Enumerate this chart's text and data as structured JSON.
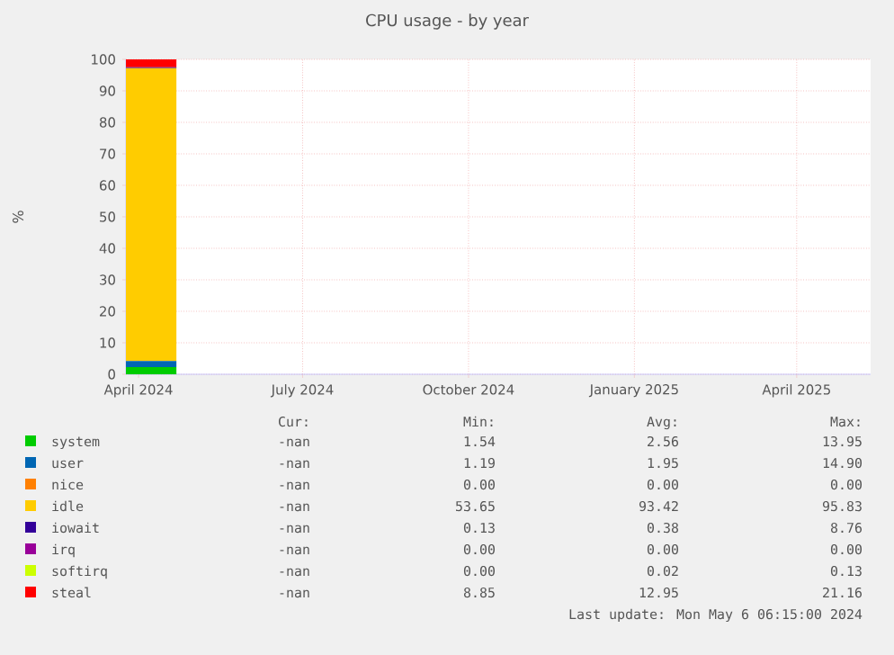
{
  "chart_data": {
    "type": "area",
    "stacked": true,
    "title": "CPU usage - by year",
    "ylabel": "%",
    "x": [
      "2024-03-25",
      "2024-04-01",
      "2024-04-08",
      "2024-04-15",
      "2024-04-22"
    ],
    "series": [
      {
        "name": "system",
        "color": "#00cc00",
        "values": [
          2.3,
          2.3,
          2.3,
          2.3,
          2.3
        ]
      },
      {
        "name": "user",
        "color": "#0066b3",
        "values": [
          1.9,
          1.9,
          1.9,
          1.9,
          1.9
        ]
      },
      {
        "name": "nice",
        "color": "#ff8000",
        "values": [
          null,
          null,
          null,
          null,
          null
        ]
      },
      {
        "name": "idle",
        "color": "#ffcc00",
        "values": [
          93,
          93,
          93,
          93,
          93
        ]
      },
      {
        "name": "iowait",
        "color": "#330099",
        "values": [
          0.3,
          0.3,
          0.3,
          0.3,
          0.3
        ]
      },
      {
        "name": "irq",
        "color": "#990099",
        "values": [
          null,
          null,
          null,
          null,
          null
        ]
      },
      {
        "name": "softirq",
        "color": "#ccff00",
        "values": [
          null,
          null,
          null,
          null,
          null
        ]
      },
      {
        "name": "steal",
        "color": "#ff0000",
        "values": [
          2.5,
          2.5,
          2.5,
          2.5,
          2.5
        ]
      }
    ],
    "xlim": [
      "2024-03-25",
      "2025-05-12"
    ],
    "ylim": [
      0,
      100
    ],
    "xticks": [
      {
        "value": "2024-04-01",
        "label": "April 2024"
      },
      {
        "value": "2024-07-01",
        "label": "July 2024"
      },
      {
        "value": "2024-10-01",
        "label": "October 2024"
      },
      {
        "value": "2025-01-01",
        "label": "January 2025"
      },
      {
        "value": "2025-04-01",
        "label": "April 2025"
      }
    ],
    "yticks": [
      0,
      10,
      20,
      30,
      40,
      50,
      60,
      70,
      80,
      90,
      100
    ],
    "grid": true,
    "legend": "bottom",
    "annotations": [
      "Cur:",
      "Min:",
      "Avg:",
      "Max:",
      "-nan",
      "1.54",
      "2.56",
      "13.95",
      "-nan",
      "1.19",
      "1.95",
      "14.90",
      "-nan",
      "0.00",
      "0.00",
      "0.00",
      "-nan",
      "53.65",
      "93.42",
      "95.83",
      "-nan",
      "0.13",
      "0.38",
      "8.76",
      "-nan",
      "0.00",
      "0.00",
      "0.00",
      "-nan",
      "0.00",
      "0.02",
      "0.13",
      "-nan",
      "8.85",
      "12.95",
      "21.16",
      "Last update:  Mon May  6 06:15:00 2024"
    ]
  }
}
